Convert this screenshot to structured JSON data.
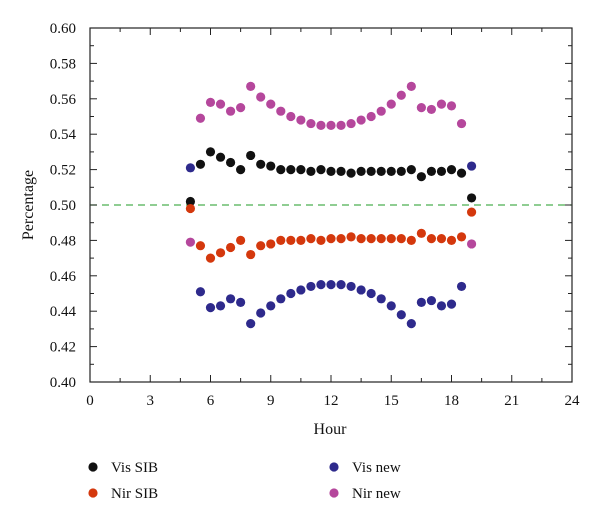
{
  "chart_data": {
    "type": "scatter",
    "title": "",
    "xlabel": "Hour",
    "ylabel": "Percentage",
    "xlim": [
      0,
      24
    ],
    "ylim": [
      0.4,
      0.6
    ],
    "xticks": [
      0,
      3,
      6,
      9,
      12,
      15,
      18,
      21,
      24
    ],
    "yticks": [
      "0.40",
      "0.42",
      "0.44",
      "0.46",
      "0.48",
      "0.50",
      "0.52",
      "0.54",
      "0.56",
      "0.58",
      "0.60"
    ],
    "grid": false,
    "legend_position": "bottom",
    "reference_line": {
      "y": 0.5,
      "color": "#4caf50",
      "style": "dashed"
    },
    "x": [
      5,
      5.5,
      6,
      6.5,
      7,
      7.5,
      8,
      8.5,
      9,
      9.5,
      10,
      10.5,
      11,
      11.5,
      12,
      12.5,
      13,
      13.5,
      14,
      14.5,
      15,
      15.5,
      16,
      16.5,
      17,
      17.5,
      18,
      18.5,
      19
    ],
    "series": [
      {
        "name": "Vis SIB",
        "color": "#111111",
        "values": [
          0.502,
          0.523,
          0.53,
          0.527,
          0.524,
          0.52,
          0.528,
          0.523,
          0.522,
          0.52,
          0.52,
          0.52,
          0.519,
          0.52,
          0.519,
          0.519,
          0.518,
          0.519,
          0.519,
          0.519,
          0.519,
          0.519,
          0.52,
          0.516,
          0.519,
          0.519,
          0.52,
          0.518,
          0.504
        ]
      },
      {
        "name": "Nir SIB",
        "color": "#d4380d",
        "values": [
          0.498,
          0.477,
          0.47,
          0.473,
          0.476,
          0.48,
          0.472,
          0.477,
          0.478,
          0.48,
          0.48,
          0.48,
          0.481,
          0.48,
          0.481,
          0.481,
          0.482,
          0.481,
          0.481,
          0.481,
          0.481,
          0.481,
          0.48,
          0.484,
          0.481,
          0.481,
          0.48,
          0.482,
          0.496
        ]
      },
      {
        "name": "Vis new",
        "color": "#2e2a8c",
        "values": [
          0.521,
          0.451,
          0.442,
          0.443,
          0.447,
          0.445,
          0.433,
          0.439,
          0.443,
          0.447,
          0.45,
          0.452,
          0.454,
          0.455,
          0.455,
          0.455,
          0.454,
          0.452,
          0.45,
          0.447,
          0.443,
          0.438,
          0.433,
          0.445,
          0.446,
          0.443,
          0.444,
          0.454,
          0.522
        ]
      },
      {
        "name": "Nir new",
        "color": "#b5479c",
        "values": [
          0.479,
          0.549,
          0.558,
          0.557,
          0.553,
          0.555,
          0.567,
          0.561,
          0.557,
          0.553,
          0.55,
          0.548,
          0.546,
          0.545,
          0.545,
          0.545,
          0.546,
          0.548,
          0.55,
          0.553,
          0.557,
          0.562,
          0.567,
          0.555,
          0.554,
          0.557,
          0.556,
          0.546,
          0.478
        ]
      }
    ],
    "legend_order": [
      "Vis SIB",
      "Vis new",
      "Nir SIB",
      "Nir new"
    ]
  }
}
